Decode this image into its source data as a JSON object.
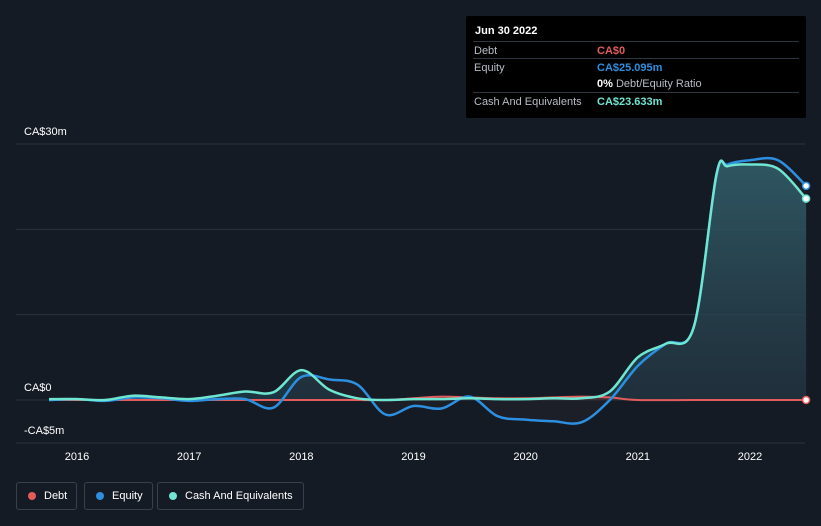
{
  "tooltip": {
    "date": "Jun 30 2022",
    "rows": [
      {
        "label": "Debt",
        "value": "CA$0"
      },
      {
        "label": "Equity",
        "value": "CA$25.095m"
      },
      {
        "label": "",
        "ratio_value": "0%",
        "ratio_label": "Debt/Equity Ratio"
      },
      {
        "label": "Cash And Equivalents",
        "value": "CA$23.633m"
      }
    ]
  },
  "legend": [
    {
      "label": "Debt",
      "color": "#e25c5c"
    },
    {
      "label": "Equity",
      "color": "#2d8fe0"
    },
    {
      "label": "Cash And Equivalents",
      "color": "#6fe6d2"
    }
  ],
  "chart_data": {
    "type": "area",
    "y_unit": "CA$ millions",
    "ylim": [
      -5,
      30
    ],
    "y_tick_labels": [
      {
        "value": 30,
        "label": "CA$30m"
      },
      {
        "value": 0,
        "label": "CA$0"
      },
      {
        "value": -5,
        "label": "-CA$5m"
      }
    ],
    "x_ticks": [
      2016,
      2017,
      2018,
      2019,
      2020,
      2021,
      2022
    ],
    "xlim": [
      2015.7,
      2022.5
    ],
    "grid": true,
    "series": [
      {
        "name": "Debt",
        "color": "#e25c5c",
        "x": [
          2015.75,
          2016.0,
          2016.5,
          2017.0,
          2017.5,
          2018.0,
          2018.5,
          2018.75,
          2019.0,
          2019.25,
          2019.5,
          2019.75,
          2020.0,
          2020.25,
          2020.5,
          2020.75,
          2021.0,
          2021.5,
          2022.0,
          2022.5
        ],
        "values": [
          0.0,
          0.0,
          0.0,
          0.0,
          0.0,
          0.0,
          0.0,
          0.0,
          0.2,
          0.4,
          0.3,
          0.2,
          0.2,
          0.3,
          0.4,
          0.3,
          0.0,
          0.0,
          0.0,
          0.0
        ]
      },
      {
        "name": "Equity",
        "color": "#2d8fe0",
        "x": [
          2015.75,
          2016.0,
          2016.25,
          2016.5,
          2016.75,
          2017.0,
          2017.25,
          2017.5,
          2017.75,
          2018.0,
          2018.25,
          2018.5,
          2018.75,
          2019.0,
          2019.25,
          2019.5,
          2019.75,
          2020.0,
          2020.25,
          2020.5,
          2020.75,
          2021.0,
          2021.25,
          2021.5,
          2021.7,
          2021.8,
          2022.0,
          2022.25,
          2022.5
        ],
        "values": [
          0.0,
          0.1,
          -0.1,
          0.3,
          0.2,
          -0.1,
          0.1,
          0.1,
          -0.9,
          2.7,
          2.4,
          1.8,
          -1.7,
          -0.7,
          -1.0,
          0.4,
          -1.9,
          -2.3,
          -2.5,
          -2.6,
          0.0,
          4.0,
          6.6,
          8.6,
          26.3,
          27.6,
          28.1,
          28.1,
          25.1
        ]
      },
      {
        "name": "Cash And Equivalents",
        "color": "#6fe6d2",
        "x": [
          2015.75,
          2016.0,
          2016.25,
          2016.5,
          2016.75,
          2017.0,
          2017.25,
          2017.5,
          2017.75,
          2018.0,
          2018.25,
          2018.5,
          2018.75,
          2019.0,
          2019.25,
          2019.5,
          2019.75,
          2020.0,
          2020.25,
          2020.5,
          2020.75,
          2021.0,
          2021.25,
          2021.5,
          2021.7,
          2021.8,
          2022.0,
          2022.25,
          2022.5
        ],
        "values": [
          0.1,
          0.1,
          0.0,
          0.5,
          0.3,
          0.1,
          0.5,
          1.0,
          0.9,
          3.5,
          1.2,
          0.2,
          0.0,
          0.1,
          0.1,
          0.2,
          0.1,
          0.1,
          0.2,
          0.2,
          1.0,
          5.0,
          6.6,
          8.6,
          26.4,
          27.4,
          27.6,
          27.1,
          23.6
        ]
      }
    ]
  }
}
